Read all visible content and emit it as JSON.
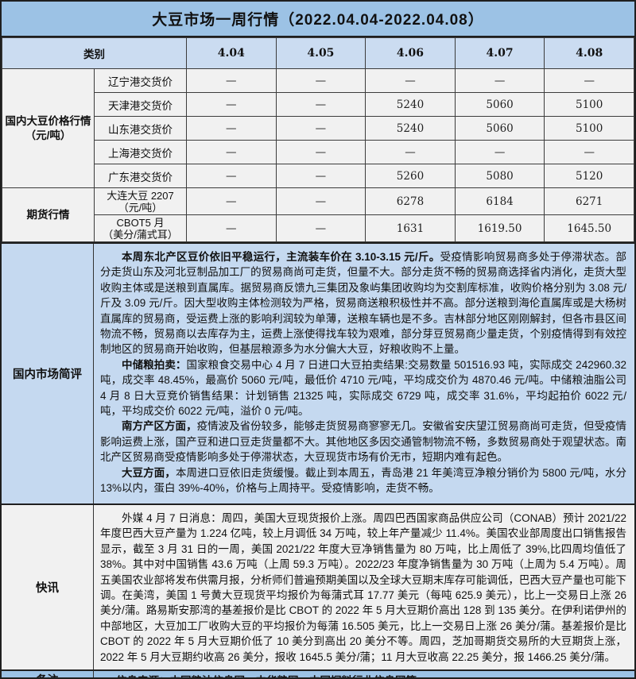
{
  "title": "大豆市场一周行情（2022.04.04-2022.04.08）",
  "colors": {
    "title_bar": "#9CC2E5",
    "header_row": "#CBDCF1",
    "cell_bg": "#F1F1F1",
    "commentary_bg": "#C5D9F0",
    "news_bg": "#F1F1F1",
    "remark_bg": "#9CC2E5",
    "border": "#1F1F1F"
  },
  "header": {
    "category": "类别",
    "dates": [
      "4.04",
      "4.05",
      "4.06",
      "4.07",
      "4.08"
    ]
  },
  "price_section": {
    "label": "国内大豆价格行情（元/吨）",
    "rows": [
      {
        "name": "辽宁港交货价",
        "values": [
          "—",
          "—",
          "—",
          "—",
          "—"
        ]
      },
      {
        "name": "天津港交货价",
        "values": [
          "—",
          "—",
          "5240",
          "5060",
          "5100"
        ]
      },
      {
        "name": "山东港交货价",
        "values": [
          "—",
          "—",
          "5240",
          "5060",
          "5100"
        ]
      },
      {
        "name": "上海港交货价",
        "values": [
          "—",
          "—",
          "—",
          "—",
          "—"
        ]
      },
      {
        "name": "广东港交货价",
        "values": [
          "—",
          "—",
          "5260",
          "5080",
          "5120"
        ]
      }
    ]
  },
  "futures_section": {
    "label": "期货行情",
    "rows": [
      {
        "name_line1": "大连大豆 2207",
        "name_line2": "（元/吨）",
        "values": [
          "—",
          "—",
          "6278",
          "6184",
          "6271"
        ]
      },
      {
        "name_line1": "CBOT5 月",
        "name_line2": "（美分/蒲式耳）",
        "values": [
          "—",
          "—",
          "1631",
          "1619.50",
          "1645.50"
        ]
      }
    ]
  },
  "commentary": {
    "label": "国内市场简评",
    "paragraphs": [
      {
        "bold": "本周东北产区豆价依旧平稳运行，主流装车价在 3.10-3.15 元/斤。",
        "text": "受疫情影响贸易商多处于停滞状态。部分走货山东及河北豆制品加工厂的贸易商尚可走货，但量不大。部分走货不畅的贸易商选择省内消化，走货大型收购主体或是送粮到直属库。据贸易商反馈九三集团及象屿集团收购均为交割库标准，收购价格分别为 3.08 元/斤及 3.09 元/斤。因大型收购主体检测较为严格，贸易商送粮积极性并不高。部分送粮到海伦直属库或是大杨树直属库的贸易商，受运费上涨的影响利润较为单薄，送粮车辆也是不多。吉林部分地区刚刚解封，但各市县区间物流不畅，贸易商以去库存为主，运费上涨使得找车较为艰难，部分芽豆贸易商少量走货，个别疫情得到有效控制地区的贸易商开始收购，但基层粮源多为水分偏大大豆，好粮收购不上量。"
      },
      {
        "bold": "中储粮拍卖：",
        "text": "国家粮食交易中心 4 月 7 日进口大豆拍卖结果:交易数量 501516.93 吨，实际成交 242960.32 吨，成交率 48.45%，最高价 5060 元/吨，最低价 4710 元/吨，平均成交价为 4870.46 元/吨。中储粮油脂公司 4 月 8 日大豆竞价销售结果：计划销售 21325 吨，实际成交 6729 吨，成交率 31.6%，平均起拍价 6022 元/吨，平均成交价 6022 元/吨，溢价 0 元/吨。"
      },
      {
        "bold": "南方产区方面，",
        "text": "疫情波及省份较多，能够走货贸易商寥寥无几。安徽省安庆望江贸易商尚可走货，但受疫情影响运费上涨，国产豆和进口豆走货量都不大。其他地区多因交通管制物流不畅，多数贸易商处于观望状态。南北产区贸易商受疫情影响多处于停滞状态，大豆现货市场有价无市，短期内难有起色。"
      },
      {
        "bold": "大豆方面，",
        "text": "本周进口豆依旧走货缓慢。截止到本周五，青岛港 21 年美湾豆净粮分销价为 5800 元/吨，水分 13%以内，蛋白 39%-40%，价格与上周持平。受疫情影响，走货不畅。"
      }
    ]
  },
  "news": {
    "label": "快讯",
    "text": "外媒 4 月 7 日消息：周四，美国大豆现货报价上涨。周四巴西国家商品供应公司（CONAB）预计 2021/22 年度巴西大豆产量为 1.224 亿吨，较上月调低 34 万吨，较上年产量减少 11.4%。美国农业部周度出口销售报告显示，截至 3 月 31 日的一周，美国 2021/22 年度大豆净销售量为 80 万吨，比上周低了 39%,比四周均值低了 38%。其中对中国销售 43.6 万吨（上周 59.3 万吨）。2022/23 年度净销售量为 30 万吨（上周为 5.4 万吨）。周五美国农业部将发布供需月报，分析师们普遍预期美国以及全球大豆期末库存可能调低，巴西大豆产量也可能下调。在美湾，美国 1 号黄大豆现货平均报价为每蒲式耳 17.77 美元（每吨 625.9 美元），比上一交易日上涨 26 美分/蒲。路易斯安那湾的基差报价是比 CBOT 的 2022 年 5 月大豆期价高出 128 到 135 美分。在伊利诺伊州的中部地区，大豆加工厂收购大豆的平均报价为每蒲 16.505 美元，比上一交易日上涨 26 美分/蒲。基差报价是比 CBOT 的 2022 年 5 月大豆期价低了 10 美分到高出 20 美分不等。周四，芝加哥期货交易所的大豆期货上涨，2022 年 5 月大豆期约收高 26 美分，报收 1645.5 美分/蒲；11 月大豆收高 22.25 美分，报 1466.25 美分/蒲。"
  },
  "remark": {
    "label": "备注",
    "text": "信息来源：中国粮油信息网、中华粮网、中国饲料行业信息网等"
  }
}
